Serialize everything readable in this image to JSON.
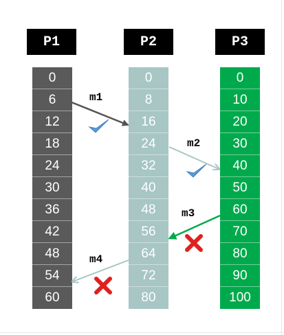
{
  "processes": [
    {
      "name": "P1",
      "clock": [
        "0",
        "6",
        "12",
        "18",
        "24",
        "30",
        "36",
        "42",
        "48",
        "54",
        "60"
      ]
    },
    {
      "name": "P2",
      "clock": [
        "0",
        "8",
        "16",
        "24",
        "32",
        "40",
        "48",
        "56",
        "64",
        "72",
        "80"
      ]
    },
    {
      "name": "P3",
      "clock": [
        "0",
        "10",
        "20",
        "30",
        "40",
        "50",
        "60",
        "70",
        "80",
        "90",
        "100"
      ]
    }
  ],
  "messages": [
    {
      "label": "m1",
      "from": "P1",
      "send_clock": "6",
      "to": "P2",
      "receive_clock": "16",
      "status": "valid",
      "status_icon": "checkmark-icon",
      "arrow_color": "#555555"
    },
    {
      "label": "m2",
      "from": "P2",
      "send_clock": "24",
      "to": "P3",
      "receive_clock": "40",
      "status": "valid",
      "status_icon": "checkmark-icon",
      "arrow_color": "#a7c6c4"
    },
    {
      "label": "m3",
      "from": "P3",
      "send_clock": "60",
      "to": "P2",
      "receive_clock": "56",
      "status": "invalid",
      "status_icon": "cross-icon",
      "arrow_color": "#00aa4c"
    },
    {
      "label": "m4",
      "from": "P2",
      "send_clock": "64",
      "to": "P1",
      "receive_clock": "54",
      "status": "invalid",
      "status_icon": "cross-icon",
      "arrow_color": "#a7c6c4"
    }
  ],
  "colors": {
    "p1": "#5a5a5a",
    "p2": "#a7c6c4",
    "p3": "#00aa4c",
    "check": "#5b9bd5",
    "cross": "#e02020"
  }
}
